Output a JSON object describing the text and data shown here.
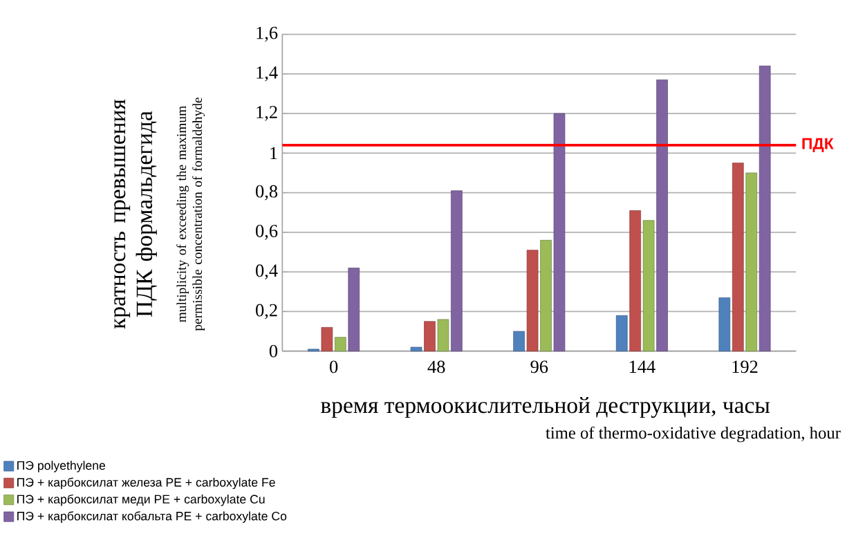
{
  "chart_data": {
    "type": "bar",
    "xlabel": "время  термоокислительной  деструкции, часы",
    "ylabel": "кратность превышения ПДК формальдегида",
    "categories": [
      "0",
      "48",
      "96",
      "144",
      "192"
    ],
    "series": [
      {
        "name": "ПЭ  polyethylene",
        "color": "#4f81bd",
        "values": [
          0.01,
          0.02,
          0.1,
          0.18,
          0.27
        ]
      },
      {
        "name": "ПЭ + карбоксилат железа  PE + carboxylate Fe",
        "color": "#c0504d",
        "values": [
          0.12,
          0.15,
          0.51,
          0.71,
          0.95
        ]
      },
      {
        "name": "ПЭ + карбоксилат меди  PE + carboxylate Cu",
        "color": "#9bbb59",
        "values": [
          0.07,
          0.16,
          0.56,
          0.66,
          0.9
        ]
      },
      {
        "name": "ПЭ + карбоксилат кобальта  PE + carboxylate Co",
        "color": "#8064a2",
        "values": [
          0.42,
          0.81,
          1.2,
          1.37,
          1.44
        ]
      }
    ],
    "ylim": [
      0,
      1.6
    ],
    "yticks": [
      0,
      {
        "value": 0.2,
        "label": "0,2"
      },
      {
        "value": 0.4,
        "label": "0,4"
      },
      {
        "value": 0.6,
        "label": "0,6"
      },
      {
        "value": 0.8,
        "label": "0,8"
      },
      1,
      {
        "value": 1.2,
        "label": "1,2"
      },
      {
        "value": 1.4,
        "label": "1,4"
      },
      {
        "value": 1.6,
        "label": "1,6"
      }
    ],
    "grid": "y",
    "legend": "bottom",
    "ref_lines": [
      {
        "axis": "y",
        "value": 1.04,
        "label": "ПДК",
        "color": "#ff0000"
      }
    ],
    "annotations": [
      "multiplicity of exceeding the maximum permissible concentration of formaldehyde",
      "time of thermo-oxidative degradation, hour"
    ]
  }
}
